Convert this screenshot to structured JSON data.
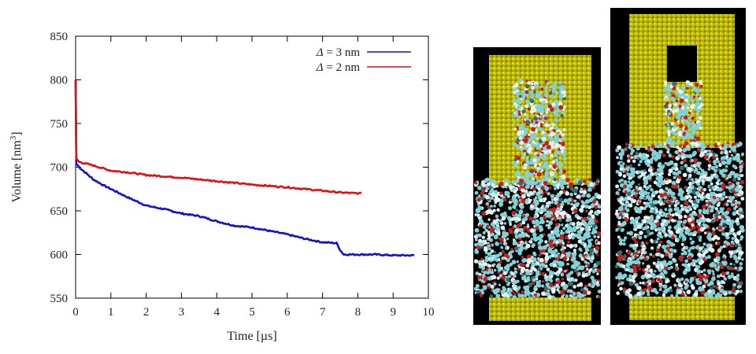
{
  "chart_data": {
    "type": "line",
    "xlabel": "Time [µs]",
    "ylabel_text": "Volume [nm",
    "ylabel_sup": "3",
    "ylabel_close": "]",
    "xlim": [
      0,
      10
    ],
    "ylim": [
      550,
      850
    ],
    "xticks": [
      "0",
      "1",
      "2",
      "3",
      "4",
      "5",
      "6",
      "7",
      "8",
      "9",
      "10"
    ],
    "yticks": [
      "550",
      "600",
      "650",
      "700",
      "750",
      "800",
      "850"
    ],
    "grid": false,
    "legend_position": "top-right",
    "series": [
      {
        "name_symbol": "Δ",
        "name_rest": " = 3 nm",
        "color": "#1010d0",
        "x": [
          0,
          0.02,
          0.1,
          0.3,
          0.5,
          0.8,
          1.0,
          1.5,
          2.0,
          2.5,
          3.0,
          3.5,
          4.0,
          4.5,
          5.0,
          5.5,
          6.0,
          6.5,
          7.0,
          7.4,
          7.5,
          7.6,
          8.0,
          8.5,
          9.0,
          9.5,
          9.6
        ],
        "y": [
          800,
          704,
          700,
          693,
          686,
          679,
          675,
          665,
          656,
          652,
          647,
          644,
          638,
          633,
          631,
          627,
          623,
          618,
          614,
          613,
          605,
          600,
          600,
          600,
          599,
          599,
          599
        ]
      },
      {
        "name_symbol": "Δ",
        "name_rest": " = 2 nm",
        "color": "#e01010",
        "x": [
          0,
          0.02,
          0.1,
          0.5,
          1.0,
          1.5,
          2.0,
          3.0,
          4.0,
          5.0,
          6.0,
          7.0,
          7.5,
          8.0,
          8.1
        ],
        "y": [
          800,
          710,
          706,
          702,
          696,
          694,
          691,
          688,
          684,
          680,
          677,
          673,
          671,
          670,
          670
        ]
      }
    ]
  },
  "images": {
    "left_panel": "molecular-simulation-snapshot-narrow-pore",
    "right_panel": "molecular-simulation-snapshot-wide-pore",
    "colors": {
      "wall": "#c8c400",
      "background": "#000000",
      "atom_cyan": "#7fd3d8",
      "atom_red": "#c42020",
      "atom_white": "#e8f2f2"
    }
  }
}
